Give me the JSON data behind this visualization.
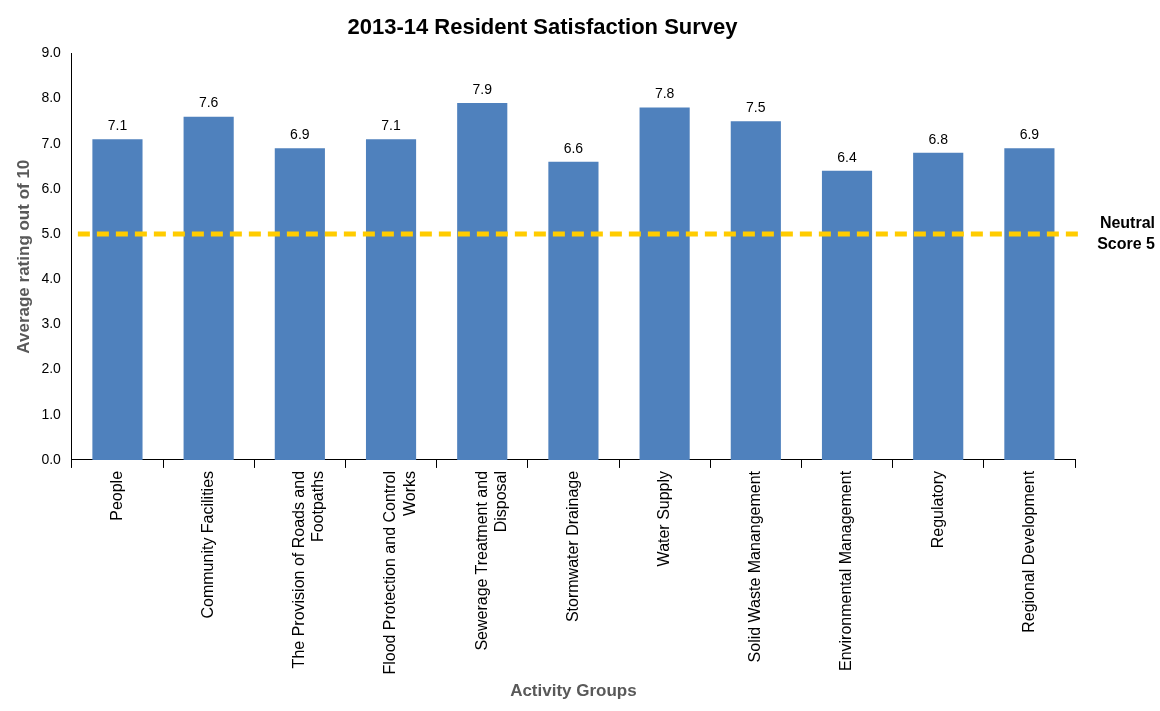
{
  "chart_data": {
    "type": "bar",
    "title": "2013-14 Resident Satisfaction Survey",
    "xlabel": "Activity Groups",
    "ylabel": "Average rating out of 10",
    "categories": [
      "People",
      "Community Facilities",
      "The Provision of Roads and Footpaths",
      "Flood Protection and Control Works",
      "Sewerage Treatment and Disposal",
      "Stormwater Drainage",
      "Water Supply",
      "Solid Waste Manangement",
      "Environmental Management",
      "Regulatory",
      "Regional Development"
    ],
    "values": [
      7.1,
      7.6,
      6.9,
      7.1,
      7.9,
      6.6,
      7.8,
      7.5,
      6.4,
      6.8,
      6.9
    ],
    "color": "#4f81bd",
    "data_labels": true,
    "ylim": [
      0,
      9
    ],
    "yticks": [
      {
        "value": 0,
        "label": "0.0"
      },
      {
        "value": 1,
        "label": "1.0"
      },
      {
        "value": 2,
        "label": "2.0"
      },
      {
        "value": 3,
        "label": "3.0"
      },
      {
        "value": 4,
        "label": "4.0"
      },
      {
        "value": 5,
        "label": "5.0"
      },
      {
        "value": 6,
        "label": "6.0"
      },
      {
        "value": 7,
        "label": "7.0"
      },
      {
        "value": 8,
        "label": "8.0"
      },
      {
        "value": 9,
        "label": "9.0"
      }
    ],
    "ref_lines": [
      {
        "axis": "y",
        "value": 5,
        "label": "Neutral Score 5",
        "color": "#ffcc00",
        "line_style": "dashed"
      }
    ]
  }
}
